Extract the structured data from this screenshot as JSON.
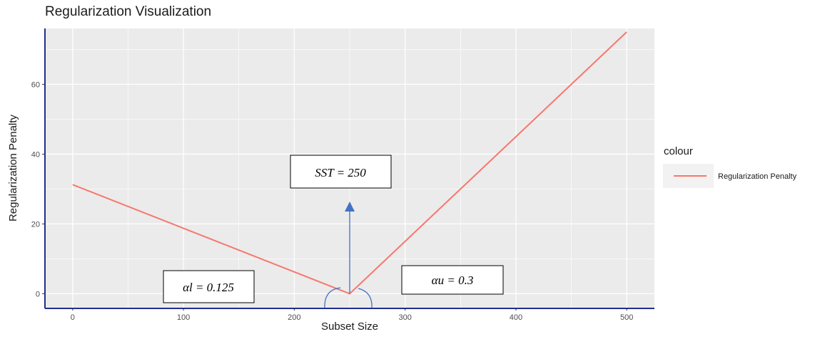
{
  "chart_data": {
    "type": "line",
    "title": "Regularization Visualization",
    "xlabel": "Subset Size",
    "ylabel": "Regularization Penalty",
    "xlim": [
      -25,
      525
    ],
    "ylim": [
      -4,
      76
    ],
    "xticks": [
      0,
      100,
      200,
      300,
      400,
      500
    ],
    "yticks": [
      0,
      20,
      40,
      60
    ],
    "grid": true,
    "legend": {
      "title": "colour",
      "position": "right"
    },
    "series": [
      {
        "name": "Regularization Penalty",
        "color": "#F8766D",
        "x": [
          0,
          250,
          500
        ],
        "y": [
          31.25,
          0,
          75
        ]
      }
    ],
    "annotations": [
      {
        "text": "SST = 250",
        "x": 250
      },
      {
        "text": "αl = 0.125"
      },
      {
        "text": "αu = 0.3"
      }
    ]
  },
  "colors": {
    "panel": "#EBEBEB",
    "grid_major": "#FFFFFF",
    "axis_line": "#1F2F8F",
    "arrow": "#4472C4",
    "line": "#F8766D"
  }
}
